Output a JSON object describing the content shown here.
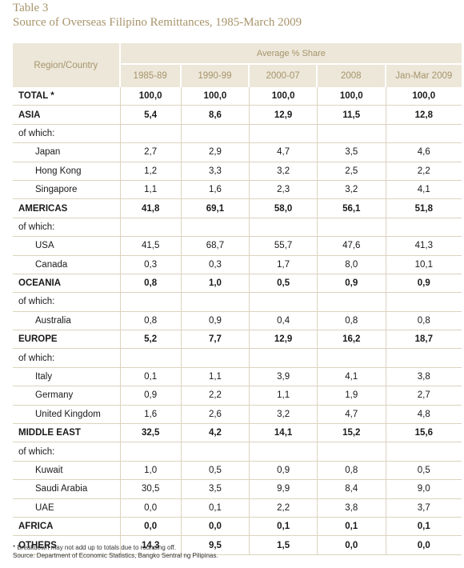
{
  "table_label": "Table 3",
  "title": "Source of Overseas Filipino Remittances, 1985-March 2009",
  "header": {
    "region": "Region/Country",
    "group": "Average % Share",
    "years": [
      "1985-89",
      "1990-99",
      "2000-07",
      "2008",
      "Jan-Mar 2009"
    ]
  },
  "rows": [
    {
      "label": "TOTAL *",
      "kind": "bold",
      "values": [
        "100,0",
        "100,0",
        "100,0",
        "100,0",
        "100,0"
      ]
    },
    {
      "label": "ASIA",
      "kind": "bold",
      "values": [
        "5,4",
        "8,6",
        "12,9",
        "11,5",
        "12,8"
      ]
    },
    {
      "label": "of  which:",
      "kind": "sub",
      "values": [
        "",
        "",
        "",
        "",
        ""
      ]
    },
    {
      "label": "Japan",
      "kind": "ind",
      "values": [
        "2,7",
        "2,9",
        "4,7",
        "3,5",
        "4,6"
      ]
    },
    {
      "label": "Hong Kong",
      "kind": "ind",
      "values": [
        "1,2",
        "3,3",
        "3,2",
        "2,5",
        "2,2"
      ]
    },
    {
      "label": "Singapore",
      "kind": "ind",
      "values": [
        "1,1",
        "1,6",
        "2,3",
        "3,2",
        "4,1"
      ]
    },
    {
      "label": "AMERICAS",
      "kind": "bold",
      "values": [
        "41,8",
        "69,1",
        "58,0",
        "56,1",
        "51,8"
      ]
    },
    {
      "label": "of  which:",
      "kind": "sub",
      "values": [
        "",
        "",
        "",
        "",
        ""
      ]
    },
    {
      "label": "USA",
      "kind": "ind",
      "values": [
        "41,5",
        "68,7",
        "55,7",
        "47,6",
        "41,3"
      ]
    },
    {
      "label": "Canada",
      "kind": "ind",
      "values": [
        "0,3",
        "0,3",
        "1,7",
        "8,0",
        "10,1"
      ]
    },
    {
      "label": "OCEANIA",
      "kind": "bold",
      "values": [
        "0,8",
        "1,0",
        "0,5",
        "0,9",
        "0,9"
      ]
    },
    {
      "label": "of  which:",
      "kind": "sub",
      "values": [
        "",
        "",
        "",
        "",
        ""
      ]
    },
    {
      "label": "Australia",
      "kind": "ind",
      "values": [
        "0,8",
        "0,9",
        "0,4",
        "0,8",
        "0,8"
      ]
    },
    {
      "label": "EUROPE",
      "kind": "bold",
      "values": [
        "5,2",
        "7,7",
        "12,9",
        "16,2",
        "18,7"
      ]
    },
    {
      "label": "of  which:",
      "kind": "sub",
      "values": [
        "",
        "",
        "",
        "",
        ""
      ]
    },
    {
      "label": "Italy",
      "kind": "ind",
      "values": [
        "0,1",
        "1,1",
        "3,9",
        "4,1",
        "3,8"
      ]
    },
    {
      "label": "Germany",
      "kind": "ind",
      "values": [
        "0,9",
        "2,2",
        "1,1",
        "1,9",
        "2,7"
      ]
    },
    {
      "label": "United Kingdom",
      "kind": "ind",
      "values": [
        "1,6",
        "2,6",
        "3,2",
        "4,7",
        "4,8"
      ]
    },
    {
      "label": "MIDDLE EAST",
      "kind": "bold",
      "values": [
        "32,5",
        "4,2",
        "14,1",
        "15,2",
        "15,6"
      ]
    },
    {
      "label": "of  which:",
      "kind": "sub",
      "values": [
        "",
        "",
        "",
        "",
        ""
      ]
    },
    {
      "label": "Kuwait",
      "kind": "ind",
      "values": [
        "1,0",
        "0,5",
        "0,9",
        "0,8",
        "0,5"
      ]
    },
    {
      "label": "Saudi Arabia",
      "kind": "ind",
      "values": [
        "30,5",
        "3,5",
        "9,9",
        "8,4",
        "9,0"
      ]
    },
    {
      "label": "UAE",
      "kind": "ind",
      "values": [
        "0,0",
        "0,1",
        "2,2",
        "3,8",
        "3,7"
      ]
    },
    {
      "label": "AFRICA",
      "kind": "bold",
      "values": [
        "0,0",
        "0,0",
        "0,1",
        "0,1",
        "0,1"
      ]
    },
    {
      "label": "OTHERS",
      "kind": "bold",
      "values": [
        "14,3",
        "9,5",
        "1,5",
        "0,0",
        "0,0"
      ]
    }
  ],
  "footnotes": {
    "note": "*  Breakdown may not add up to totals due to rounding off.",
    "source": "Source:  Department of Economic Statistics, Bangko Sentral ng Pilipinas."
  }
}
